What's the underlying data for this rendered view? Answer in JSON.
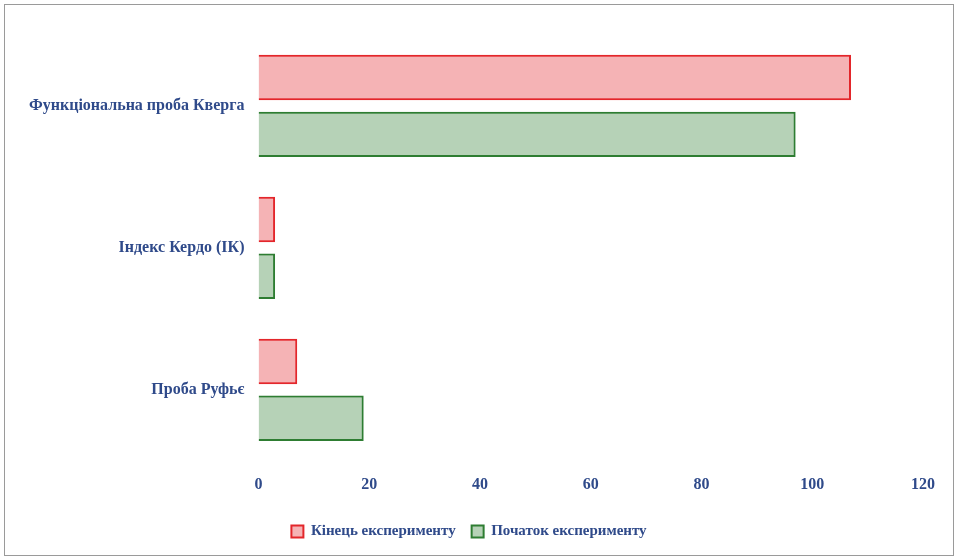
{
  "chart_data": {
    "type": "bar",
    "orientation": "horizontal",
    "categories": [
      "Функціональна проба Кверга",
      "Індекс Кердо (ІК)",
      "Проба Руфьє"
    ],
    "series": [
      {
        "name": "Кінець експерименту",
        "color": "#e3262b",
        "values": [
          107,
          3,
          7
        ]
      },
      {
        "name": "Початок експерименту",
        "color": "#2e7d32",
        "values": [
          97,
          3,
          19
        ]
      }
    ],
    "xlim": [
      0,
      120
    ],
    "xticks": [
      0,
      20,
      40,
      60,
      80,
      100,
      120
    ],
    "grid": false,
    "legend": "bottom"
  }
}
